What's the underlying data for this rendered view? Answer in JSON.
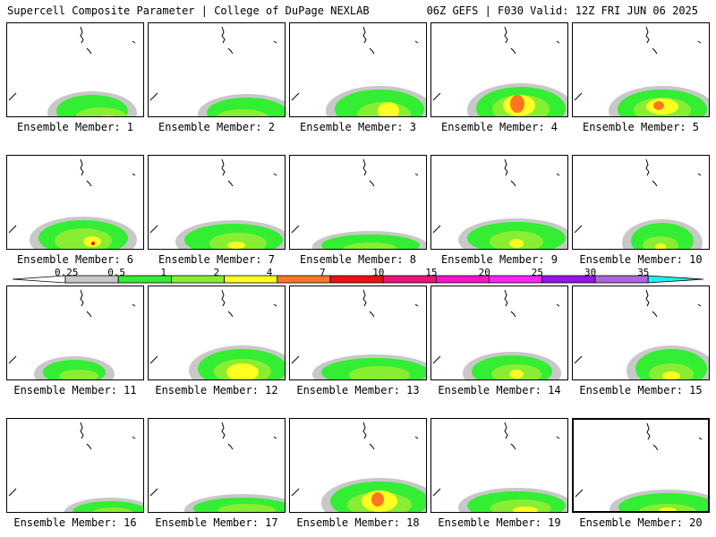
{
  "header": {
    "title_left": "Supercell Composite Parameter | College of DuPage NEXLAB",
    "title_right": "06Z GEFS | F030 Valid: 12Z FRI JUN 06 2025"
  },
  "colors": {
    "gray": "#c8c8c8",
    "green": "#33ee33",
    "light_green": "#88ee33",
    "yellow": "#ffff22",
    "orange": "#ff7722",
    "red": "#ee1111",
    "pink": "#ee1177",
    "magenta": "#ff11cc",
    "light_magenta": "#ff22ff",
    "purple": "#9911ee",
    "lavender": "#aa66dd",
    "cyan": "#22eeee"
  },
  "colorbar": {
    "labels": [
      "0.25",
      "0.5",
      "1",
      "2",
      "4",
      "7",
      "10",
      "15",
      "20",
      "25",
      "30",
      "35"
    ],
    "colors": [
      "#c8c8c8",
      "#33ee33",
      "#88ee33",
      "#ffff22",
      "#ff7722",
      "#ee1111",
      "#ee1177",
      "#ff11cc",
      "#ff22ff",
      "#9911ee",
      "#aa66dd",
      "#22eeee"
    ]
  },
  "members": [
    {
      "label": "Ensemble Member: 1",
      "selected": false
    },
    {
      "label": "Ensemble Member: 2",
      "selected": false
    },
    {
      "label": "Ensemble Member: 3",
      "selected": false
    },
    {
      "label": "Ensemble Member: 4",
      "selected": false
    },
    {
      "label": "Ensemble Member: 5",
      "selected": false
    },
    {
      "label": "Ensemble Member: 6",
      "selected": false
    },
    {
      "label": "Ensemble Member: 7",
      "selected": false
    },
    {
      "label": "Ensemble Member: 8",
      "selected": false
    },
    {
      "label": "Ensemble Member: 9",
      "selected": false
    },
    {
      "label": "Ensemble Member: 10",
      "selected": false
    },
    {
      "label": "Ensemble Member: 11",
      "selected": false
    },
    {
      "label": "Ensemble Member: 12",
      "selected": false
    },
    {
      "label": "Ensemble Member: 13",
      "selected": false
    },
    {
      "label": "Ensemble Member: 14",
      "selected": false
    },
    {
      "label": "Ensemble Member: 15",
      "selected": false
    },
    {
      "label": "Ensemble Member: 16",
      "selected": false
    },
    {
      "label": "Ensemble Member: 17",
      "selected": false
    },
    {
      "label": "Ensemble Member: 18",
      "selected": false
    },
    {
      "label": "Ensemble Member: 19",
      "selected": false
    },
    {
      "label": "Ensemble Member: 20",
      "selected": true
    }
  ]
}
